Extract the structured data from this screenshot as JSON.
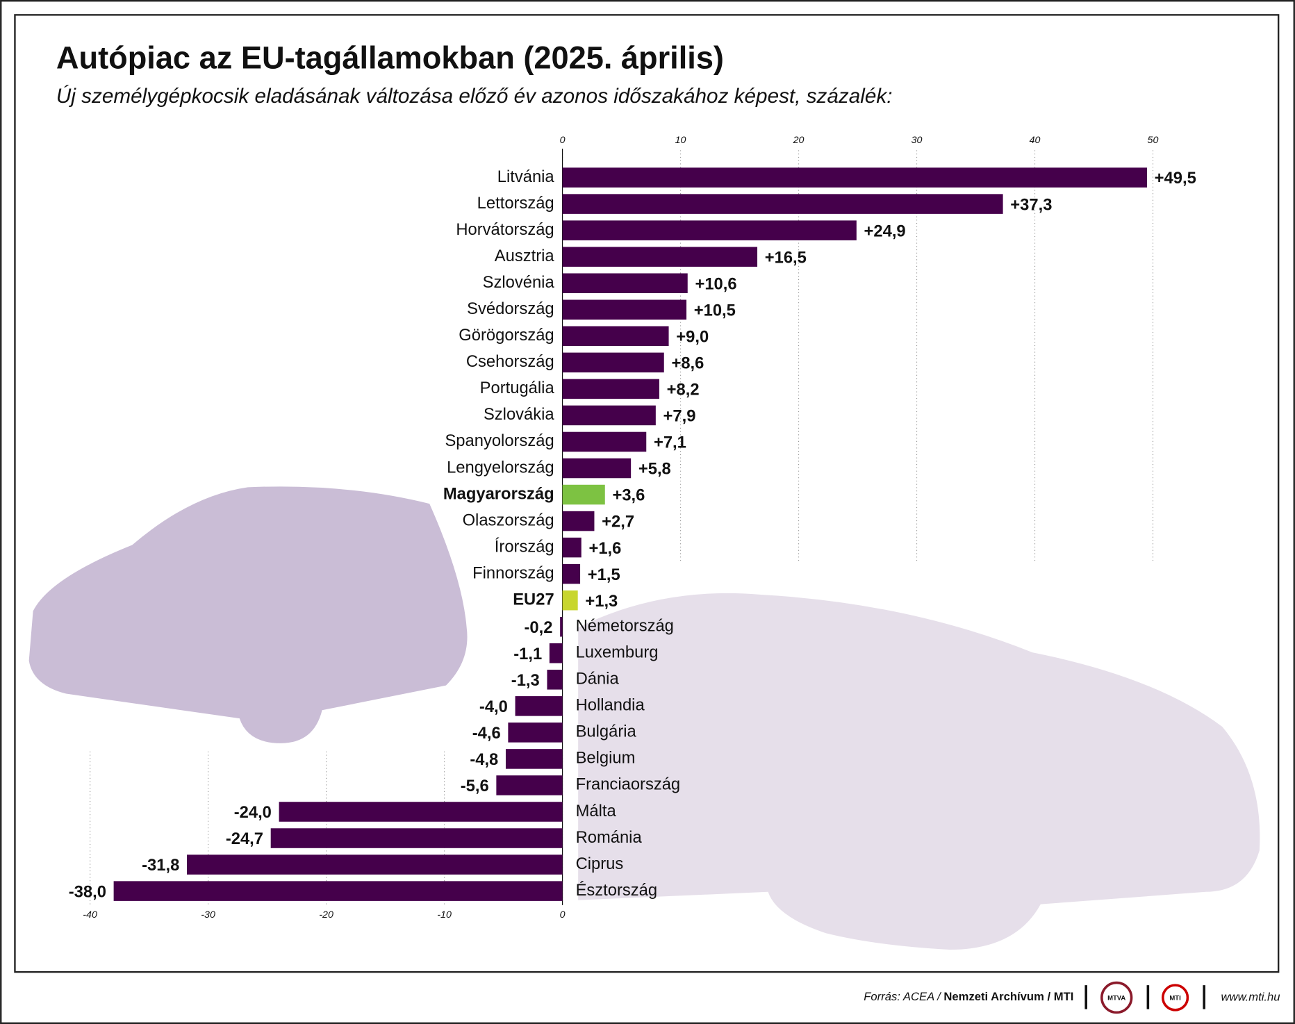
{
  "chart_data": {
    "type": "bar",
    "orientation": "horizontal",
    "title": "Autópiac az EU-tagállamokban (2025. április)",
    "subtitle": "Új személygépkocsik eladásának változása előző év azonos időszakához képest, százalék:",
    "categories": [
      "Litvánia",
      "Lettország",
      "Horvátország",
      "Ausztria",
      "Szlovénia",
      "Svédország",
      "Görögország",
      "Csehország",
      "Portugália",
      "Szlovákia",
      "Spanyolország",
      "Lengyelország",
      "Magyarország",
      "Olaszország",
      "Írország",
      "Finnország",
      "EU27",
      "Németország",
      "Luxemburg",
      "Dánia",
      "Hollandia",
      "Bulgária",
      "Belgium",
      "Franciaország",
      "Málta",
      "Románia",
      "Ciprus",
      "Észtország"
    ],
    "values": [
      49.5,
      37.3,
      24.9,
      16.5,
      10.6,
      10.5,
      9.0,
      8.6,
      8.2,
      7.9,
      7.1,
      5.8,
      3.6,
      2.7,
      1.6,
      1.5,
      1.3,
      -0.2,
      -1.1,
      -1.3,
      -4.0,
      -4.6,
      -4.8,
      -5.6,
      -24.0,
      -24.7,
      -31.8,
      -38.0
    ],
    "value_labels": [
      "+49,5",
      "+37,3",
      "+24,9",
      "+16,5",
      "+10,6",
      "+10,5",
      "+9,0",
      "+8,6",
      "+8,2",
      "+7,9",
      "+7,1",
      "+5,8",
      "+3,6",
      "+2,7",
      "+1,6",
      "+1,5",
      "+1,3",
      "-0,2",
      "-1,1",
      "-1,3",
      "-4,0",
      "-4,6",
      "-4,8",
      "-5,6",
      "-24,0",
      "-24,7",
      "-31,8",
      "-38,0"
    ],
    "color": "#45004b",
    "colors": [
      "#45004b",
      "#45004b",
      "#45004b",
      "#45004b",
      "#45004b",
      "#45004b",
      "#45004b",
      "#45004b",
      "#45004b",
      "#45004b",
      "#45004b",
      "#45004b",
      "#7dc242",
      "#45004b",
      "#45004b",
      "#45004b",
      "#c8d62e",
      "#45004b",
      "#45004b",
      "#45004b",
      "#45004b",
      "#45004b",
      "#45004b",
      "#45004b",
      "#45004b",
      "#45004b",
      "#45004b",
      "#45004b"
    ],
    "xlim": [
      -40,
      50
    ],
    "xticks_top": [
      0,
      10,
      20,
      30,
      40,
      50
    ],
    "xticks_bottom": [
      -40,
      -30,
      -20,
      -10,
      0
    ],
    "grid": true
  },
  "footer": {
    "source": [
      "Forrás: ACEA /",
      "Nemzeti Archívum",
      "/ MTI"
    ],
    "logos": [
      "MTVA",
      "MTI"
    ],
    "url": "www.mti.hu"
  }
}
